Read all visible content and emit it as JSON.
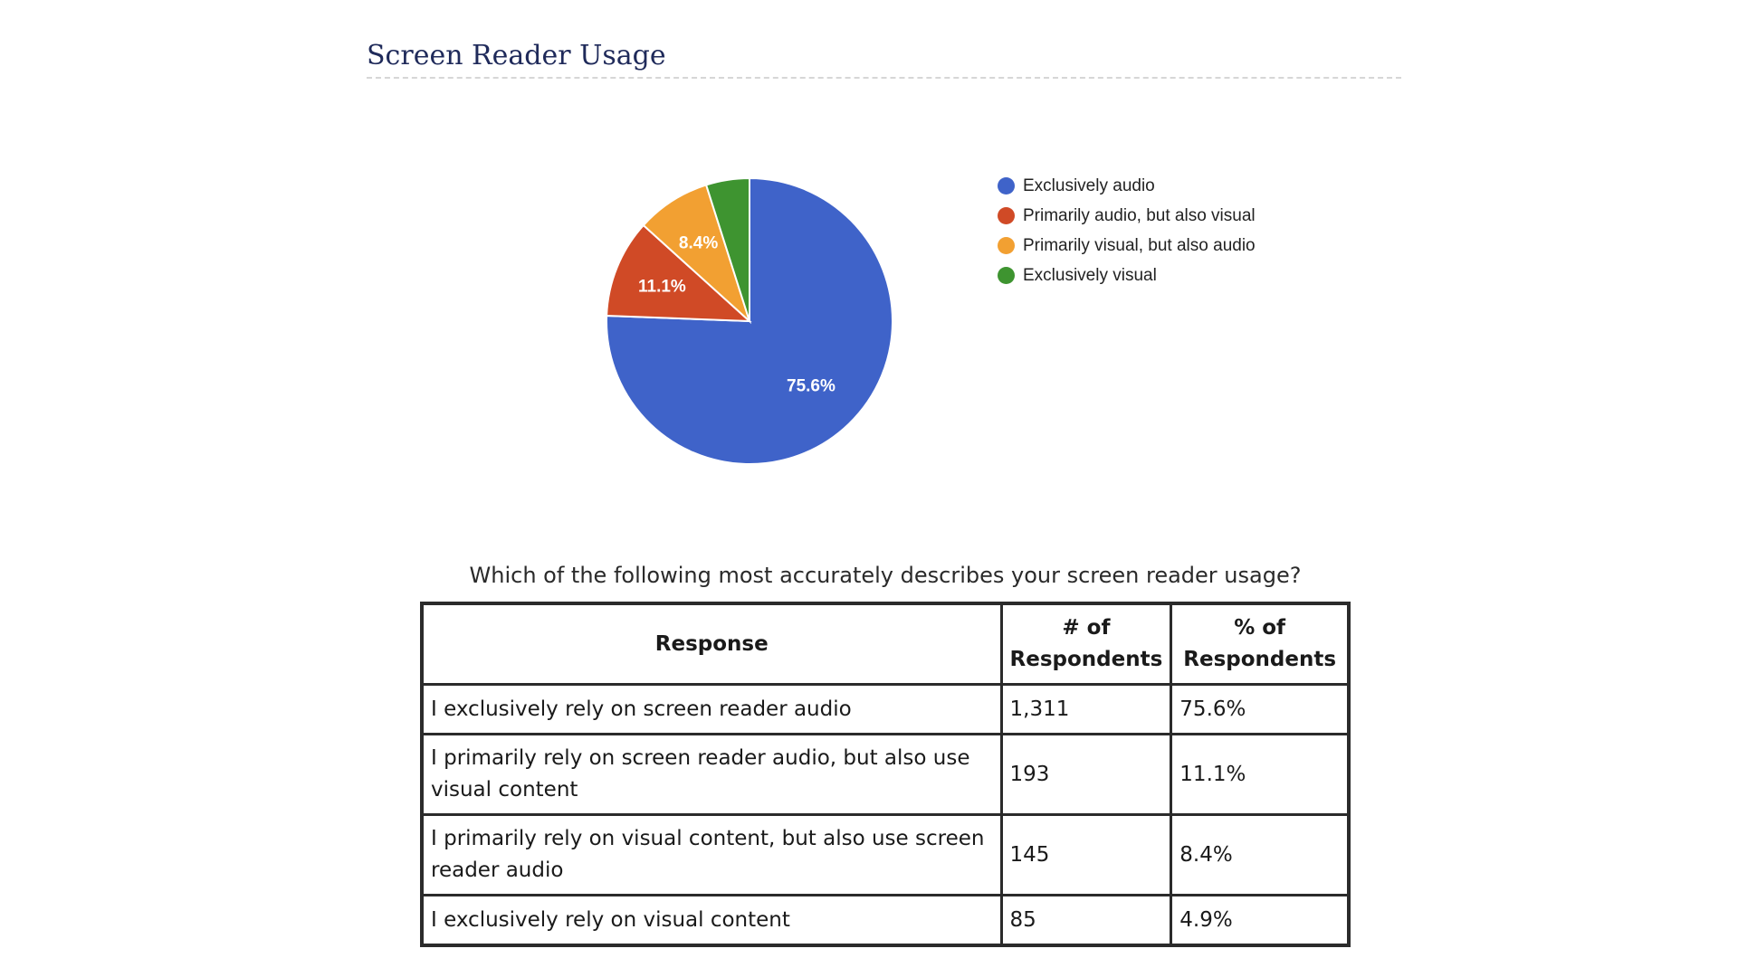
{
  "section": {
    "title": "Screen Reader Usage"
  },
  "chart_data": {
    "type": "pie",
    "categories": [
      "Exclusively audio",
      "Primarily audio, but also visual",
      "Primarily visual, but also audio",
      "Exclusively visual"
    ],
    "values": [
      75.6,
      11.1,
      8.4,
      4.9
    ],
    "slice_labels": [
      "75.6%",
      "11.1%",
      "8.4%",
      ""
    ],
    "colors": [
      "#3f63c9",
      "#d04a26",
      "#f2a032",
      "#3e9430"
    ],
    "legend_position": "right",
    "title": "",
    "xlabel": "",
    "ylabel": ""
  },
  "table": {
    "caption": "Which of the following most accurately describes your screen reader usage?",
    "headers": [
      "Response",
      "# of Respondents",
      "% of Respondents"
    ],
    "rows": [
      {
        "response": "I exclusively rely on screen reader audio",
        "count": "1,311",
        "percent": "75.6%"
      },
      {
        "response": "I primarily rely on screen reader audio, but also use visual content",
        "count": "193",
        "percent": "11.1%"
      },
      {
        "response": "I primarily rely on visual content, but also use screen reader audio",
        "count": "145",
        "percent": "8.4%"
      },
      {
        "response": "I exclusively rely on visual content",
        "count": "85",
        "percent": "4.9%"
      }
    ]
  }
}
